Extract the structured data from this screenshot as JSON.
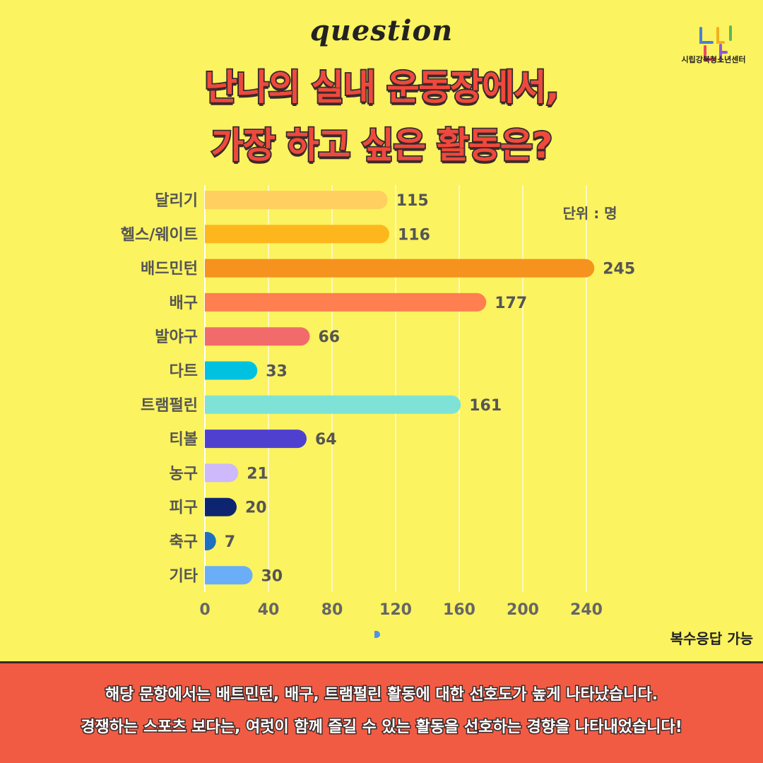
{
  "header": {
    "question": "question",
    "title_line1": "난나의 실내 운동장에서,",
    "title_line2": "가장 하고 싶은 활동은?",
    "logo_text": "시립강북청소년센터"
  },
  "colors": {
    "background": "#fbf35f",
    "title": "#f0483c",
    "footer": "#f25b43"
  },
  "chart_data": {
    "type": "bar",
    "orientation": "horizontal",
    "categories": [
      "달리기",
      "헬스/웨이트",
      "배드민턴",
      "배구",
      "발야구",
      "다트",
      "트램펄린",
      "티볼",
      "농구",
      "피구",
      "축구",
      "기타"
    ],
    "values": [
      115,
      116,
      245,
      177,
      66,
      33,
      161,
      64,
      21,
      20,
      7,
      30
    ],
    "colors": [
      "#ffd060",
      "#fdb71c",
      "#f6921e",
      "#ff7f50",
      "#f26b6b",
      "#00c2e0",
      "#7ee3d6",
      "#5040d0",
      "#cdb9fb",
      "#0d2570",
      "#1e6fc0",
      "#6aaef7"
    ],
    "xticks": [
      0,
      40,
      80,
      120,
      160,
      200,
      240
    ],
    "xlim": [
      0,
      245
    ],
    "grid": true,
    "unit_label": "단위 : 명"
  },
  "notes": {
    "multi_answer": "복수응답 가능"
  },
  "footer": {
    "line1": "해당 문항에서는 배트민턴, 배구, 트램펄린 활동에 대한 선호도가 높게 나타났습니다.",
    "line2": "경쟁하는 스포츠 보다는, 여럿이 함께 즐길 수 있는 활동을 선호하는 경향을 나타내었습니다!"
  }
}
